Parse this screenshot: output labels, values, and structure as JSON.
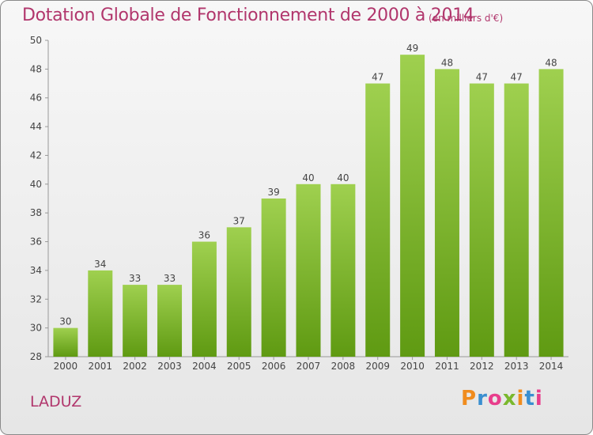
{
  "chart_data": {
    "type": "bar",
    "title": "Dotation Globale de Fonctionnement de 2000 à 2014",
    "subtitle": "(en milliers d'€)",
    "categories": [
      "2000",
      "2001",
      "2002",
      "2003",
      "2004",
      "2005",
      "2006",
      "2007",
      "2008",
      "2009",
      "2010",
      "2011",
      "2012",
      "2013",
      "2014"
    ],
    "values": [
      30,
      34,
      33,
      33,
      36,
      37,
      39,
      40,
      40,
      47,
      49,
      48,
      47,
      47,
      48
    ],
    "ylim": [
      28,
      50
    ],
    "yticks": [
      28,
      30,
      32,
      34,
      36,
      38,
      40,
      42,
      44,
      46,
      48,
      50
    ],
    "grid": false,
    "colors": {
      "bar_light": "#9fd04f",
      "bar_dark": "#5f9a12",
      "title": "#b1366c"
    }
  },
  "footer": {
    "commune": "LADUZ",
    "brand": "Proxiti"
  },
  "brand_colors": [
    "#f08c1e",
    "#3a8fd0",
    "#e83e8c",
    "#7ab82d",
    "#f08c1e",
    "#3a8fd0",
    "#e83e8c"
  ]
}
